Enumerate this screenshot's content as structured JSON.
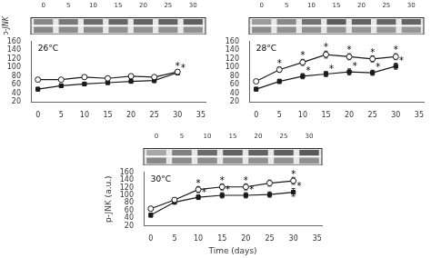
{
  "chart_data": [
    {
      "type": "line",
      "x": [
        0,
        5,
        10,
        15,
        20,
        25,
        30
      ],
      "series": [
        {
          "values": [
            72,
            72,
            78,
            75,
            80,
            78,
            90
          ],
          "errors": [
            4,
            3,
            4,
            4,
            5,
            4,
            5
          ],
          "color": "#1a1a1a",
          "marker": "open_circle"
        },
        {
          "values": [
            50,
            58,
            62,
            65,
            68,
            70,
            88
          ],
          "errors": [
            4,
            3,
            3,
            4,
            4,
            5,
            5
          ],
          "color": "#1a1a1a",
          "marker": "filled_square"
        }
      ],
      "xlim": [
        -1.5,
        36
      ],
      "xticks": [
        0,
        5,
        10,
        15,
        20,
        25,
        30,
        35
      ],
      "ylim": [
        20,
        160
      ],
      "yticks": [
        20,
        40,
        60,
        80,
        100,
        120,
        140,
        160
      ],
      "grid": false,
      "annotations": [
        {
          "text": "26°C"
        },
        {
          "text": "*",
          "x": 30,
          "y": 98
        },
        {
          "text": "*",
          "x": 31.2,
          "y": 94
        }
      ],
      "blot": {
        "categories": [
          "0",
          "5",
          "10",
          "15",
          "20",
          "25",
          "30"
        ],
        "top_intensity": [
          0.55,
          0.62,
          0.68,
          0.7,
          0.72,
          0.72,
          0.74
        ],
        "bottom_intensity": [
          0.62,
          0.6,
          0.6,
          0.58,
          0.58,
          0.58,
          0.58
        ],
        "ylabel": "p-JNK"
      }
    },
    {
      "type": "line",
      "x": [
        0,
        5,
        10,
        15,
        20,
        25,
        30
      ],
      "series": [
        {
          "values": [
            68,
            95,
            112,
            130,
            125,
            120,
            125
          ],
          "errors": [
            4,
            6,
            7,
            8,
            7,
            7,
            7
          ],
          "color": "#1a1a1a",
          "marker": "open_circle"
        },
        {
          "values": [
            50,
            68,
            80,
            85,
            90,
            88,
            103
          ],
          "errors": [
            4,
            5,
            6,
            6,
            7,
            6,
            7
          ],
          "color": "#1a1a1a",
          "marker": "filled_square"
        }
      ],
      "xlim": [
        -1.5,
        36
      ],
      "xticks": [
        0,
        5,
        10,
        15,
        20,
        25,
        30,
        35
      ],
      "ylim": [
        20,
        160
      ],
      "yticks": [
        20,
        40,
        60,
        80,
        100,
        120,
        140,
        160
      ],
      "grid": false,
      "annotations": [
        {
          "text": "28°C"
        },
        {
          "text": "*",
          "x": 5,
          "y": 104
        },
        {
          "text": "*",
          "x": 10,
          "y": 122
        },
        {
          "text": "*",
          "x": 15,
          "y": 141
        },
        {
          "text": "*",
          "x": 20,
          "y": 135
        },
        {
          "text": "*",
          "x": 25,
          "y": 130
        },
        {
          "text": "*",
          "x": 30,
          "y": 135
        },
        {
          "text": "*",
          "x": 11.2,
          "y": 87
        },
        {
          "text": "*",
          "x": 16.2,
          "y": 92
        },
        {
          "text": "*",
          "x": 21.2,
          "y": 98
        },
        {
          "text": "*",
          "x": 26.2,
          "y": 95
        },
        {
          "text": "*",
          "x": 31.2,
          "y": 111
        }
      ],
      "blot": {
        "categories": [
          "0",
          "5",
          "10",
          "15",
          "20",
          "25",
          "30"
        ],
        "top_intensity": [
          0.45,
          0.55,
          0.65,
          0.75,
          0.72,
          0.7,
          0.72
        ],
        "bottom_intensity": [
          0.6,
          0.58,
          0.58,
          0.56,
          0.55,
          0.55,
          0.55
        ]
      }
    },
    {
      "type": "line",
      "x": [
        0,
        5,
        10,
        15,
        20,
        25,
        30
      ],
      "series": [
        {
          "values": [
            65,
            88,
            115,
            122,
            122,
            132,
            138
          ],
          "errors": [
            5,
            6,
            8,
            8,
            8,
            8,
            9
          ],
          "color": "#1a1a1a",
          "marker": "open_circle"
        },
        {
          "values": [
            48,
            82,
            95,
            100,
            100,
            102,
            108
          ],
          "errors": [
            5,
            5,
            6,
            7,
            7,
            7,
            10
          ],
          "color": "#1a1a1a",
          "marker": "filled_square"
        }
      ],
      "xlim": [
        -1.5,
        36
      ],
      "xticks": [
        0,
        5,
        10,
        15,
        20,
        25,
        30,
        35
      ],
      "ylim": [
        20,
        160
      ],
      "yticks": [
        20,
        40,
        60,
        80,
        100,
        120,
        140,
        160
      ],
      "grid": false,
      "xlabel": "Time (days)",
      "ylabel": "p-JNK (a.u.)",
      "annotations": [
        {
          "text": "30°C"
        },
        {
          "text": "*",
          "x": 10,
          "y": 126
        },
        {
          "text": "*",
          "x": 15,
          "y": 133
        },
        {
          "text": "*",
          "x": 20,
          "y": 133
        },
        {
          "text": "*",
          "x": 30,
          "y": 150
        },
        {
          "text": "*",
          "x": 11.2,
          "y": 102
        },
        {
          "text": "*",
          "x": 16.2,
          "y": 108
        },
        {
          "text": "*",
          "x": 21.2,
          "y": 108
        },
        {
          "text": "*",
          "x": 31.2,
          "y": 119
        }
      ],
      "blot": {
        "categories": [
          "0",
          "5",
          "10",
          "15",
          "20",
          "25",
          "30"
        ],
        "top_intensity": [
          0.4,
          0.58,
          0.68,
          0.72,
          0.72,
          0.74,
          0.76
        ],
        "bottom_intensity": [
          0.62,
          0.6,
          0.6,
          0.58,
          0.58,
          0.58,
          0.58
        ]
      }
    }
  ]
}
